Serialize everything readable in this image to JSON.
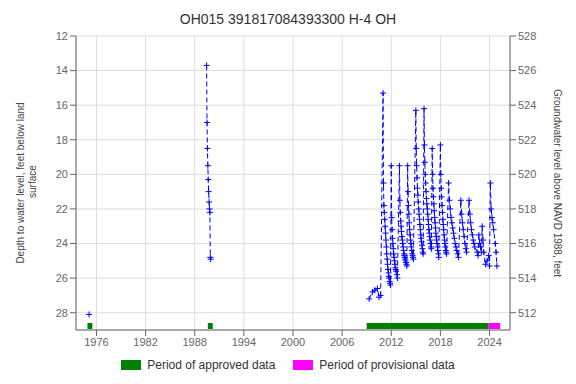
{
  "chart_data": {
    "type": "line",
    "title": "OH015 391817084393300 H-4 OH",
    "y_label": "Depth to water level, feet below land\n surface",
    "y2_label": "Groundwater level above NAVD 1988, feet",
    "xlim": [
      1973.5,
      2026.5
    ],
    "xticks": [
      1976,
      1982,
      1988,
      1994,
      2000,
      2006,
      2012,
      2018,
      2024
    ],
    "ylim": [
      29,
      12
    ],
    "yticks": [
      12,
      14,
      16,
      18,
      20,
      22,
      24,
      26,
      28
    ],
    "y2lim": [
      511,
      528
    ],
    "y2ticks": [
      512,
      514,
      516,
      518,
      520,
      522,
      524,
      526,
      528
    ],
    "grid": true,
    "legend": "bottom",
    "x": [
      1975.1,
      null,
      1989.45,
      1989.5,
      1989.55,
      1989.6,
      1989.65,
      1989.7,
      1989.75,
      1989.8,
      1989.85,
      1989.9,
      1989.95,
      null,
      2009.3,
      2009.7,
      2010.0,
      2010.3,
      2010.5,
      2010.7,
      2011.0,
      2011.05,
      2011.1,
      2011.15,
      2011.2,
      2011.25,
      2011.3,
      2011.35,
      2011.4,
      2011.45,
      2011.5,
      2011.55,
      2011.6,
      2011.65,
      2011.7,
      2011.75,
      2011.8,
      2011.85,
      2011.9,
      2012.0,
      2012.05,
      2012.1,
      2012.15,
      2012.2,
      2012.25,
      2012.3,
      2012.35,
      2012.4,
      2012.45,
      2012.5,
      2012.55,
      2012.6,
      2012.7,
      2012.75,
      2013.0,
      2013.05,
      2013.1,
      2013.15,
      2013.2,
      2013.25,
      2013.3,
      2013.35,
      2013.4,
      2013.45,
      2013.5,
      2013.55,
      2013.6,
      2013.65,
      2013.7,
      2013.75,
      2013.8,
      2013.85,
      2013.9,
      2014.0,
      2014.05,
      2014.1,
      2014.15,
      2014.2,
      2014.25,
      2014.3,
      2014.35,
      2014.4,
      2014.45,
      2014.5,
      2014.55,
      2014.6,
      2014.65,
      2014.7,
      2015.0,
      2015.05,
      2015.1,
      2015.15,
      2015.2,
      2015.25,
      2015.3,
      2015.35,
      2015.4,
      2015.45,
      2015.5,
      2015.55,
      2015.6,
      2015.65,
      2015.7,
      2015.75,
      2015.8,
      2015.85,
      2015.9,
      2016.0,
      2016.05,
      2016.1,
      2016.15,
      2016.2,
      2016.25,
      2016.3,
      2016.35,
      2016.4,
      2016.45,
      2016.5,
      2016.55,
      2016.6,
      2016.65,
      2016.7,
      2016.75,
      2016.8,
      2016.85,
      2016.9,
      2017.0,
      2017.05,
      2017.1,
      2017.15,
      2017.2,
      2017.25,
      2017.3,
      2017.35,
      2017.4,
      2017.45,
      2017.5,
      2017.55,
      2017.6,
      2017.65,
      2017.7,
      2017.75,
      2017.8,
      2018.0,
      2018.05,
      2018.1,
      2018.15,
      2018.2,
      2018.25,
      2018.3,
      2018.35,
      2018.4,
      2018.45,
      2018.5,
      2018.55,
      2018.6,
      2018.65,
      2018.7,
      2018.75,
      2019.0,
      2019.1,
      2019.2,
      2019.3,
      2019.4,
      2019.5,
      2019.6,
      2019.7,
      2019.8,
      2019.9,
      2020.0,
      2020.1,
      2020.2,
      2020.5,
      2020.6,
      2020.7,
      2020.8,
      2020.9,
      2021.0,
      2021.1,
      2021.2,
      2021.5,
      2021.6,
      2021.7,
      2021.8,
      2021.9,
      2022.0,
      2022.1,
      2022.2,
      2022.5,
      2022.6,
      2022.7,
      2022.8,
      2022.9,
      2023.0,
      2023.1,
      2023.2,
      2023.3,
      2023.5,
      2023.7,
      2023.9,
      2024.0,
      2024.1,
      2024.2,
      2024.3,
      2024.4,
      2024.5,
      2024.7,
      2024.8,
      2024.9
    ],
    "series": [
      {
        "color": "#0000ff",
        "line_style": "dashed",
        "marker": "plus",
        "values": [
          28.1,
          null,
          13.7,
          17.0,
          18.5,
          19.5,
          20.3,
          21.0,
          21.6,
          22.0,
          22.2,
          24.8,
          24.9,
          null,
          27.2,
          26.8,
          26.7,
          26.6,
          27.1,
          27.0,
          15.3,
          20.5,
          21.8,
          22.2,
          22.6,
          23.0,
          23.4,
          23.8,
          24.2,
          24.6,
          24.9,
          25.2,
          25.5,
          25.7,
          25.9,
          26.0,
          26.2,
          26.3,
          26.4,
          19.5,
          22.5,
          23.2,
          23.7,
          24.0,
          24.3,
          24.6,
          24.8,
          25.0,
          25.2,
          25.4,
          25.5,
          25.6,
          25.8,
          26.0,
          19.5,
          21.5,
          22.2,
          22.7,
          23.0,
          23.3,
          23.6,
          23.8,
          24.0,
          24.2,
          24.4,
          24.6,
          24.7,
          24.8,
          24.9,
          25.0,
          25.1,
          25.2,
          25.3,
          19.5,
          21.0,
          21.8,
          22.3,
          22.8,
          23.2,
          23.5,
          23.8,
          24.0,
          24.2,
          24.4,
          24.6,
          24.7,
          24.8,
          24.9,
          16.3,
          18.5,
          19.5,
          20.2,
          20.8,
          21.2,
          21.6,
          22.0,
          22.3,
          22.6,
          22.9,
          23.2,
          23.5,
          23.7,
          23.9,
          24.1,
          24.3,
          24.5,
          24.6,
          16.2,
          18.3,
          19.3,
          20.0,
          20.5,
          21.0,
          21.4,
          21.7,
          22.0,
          22.3,
          22.6,
          22.9,
          23.2,
          23.4,
          23.6,
          23.8,
          24.0,
          24.2,
          24.3,
          18.5,
          20.0,
          20.8,
          21.3,
          21.7,
          22.1,
          22.5,
          22.8,
          23.1,
          23.4,
          23.6,
          23.8,
          24.0,
          24.2,
          24.4,
          24.6,
          24.8,
          18.3,
          20.0,
          20.8,
          21.3,
          21.8,
          22.2,
          22.6,
          22.9,
          23.2,
          23.5,
          23.8,
          24.0,
          24.2,
          24.4,
          24.5,
          24.6,
          20.5,
          21.5,
          22.0,
          22.5,
          22.8,
          23.1,
          23.4,
          23.7,
          24.0,
          24.2,
          24.4,
          24.6,
          24.8,
          21.5,
          22.3,
          22.8,
          23.2,
          23.6,
          24.0,
          24.3,
          24.5,
          21.5,
          22.3,
          22.8,
          23.2,
          23.5,
          23.8,
          24.0,
          24.2,
          24.5,
          24.7,
          23.5,
          24.0,
          24.2,
          24.5,
          23.0,
          23.8,
          24.5,
          25.2,
          25.0,
          24.7,
          25.3,
          20.5,
          22.0,
          22.5,
          22.8,
          23.2,
          24.0,
          24.5,
          25.3
        ]
      }
    ],
    "periods": [
      {
        "name": "Period of approved data",
        "color": "#008000",
        "spans": [
          [
            1974.9,
            1975.5
          ],
          [
            1989.6,
            1990.2
          ],
          [
            2009.0,
            2023.9
          ]
        ]
      },
      {
        "name": "Period of provisional data",
        "color": "#ff00ff",
        "spans": [
          [
            2023.9,
            2025.3
          ]
        ]
      }
    ]
  }
}
